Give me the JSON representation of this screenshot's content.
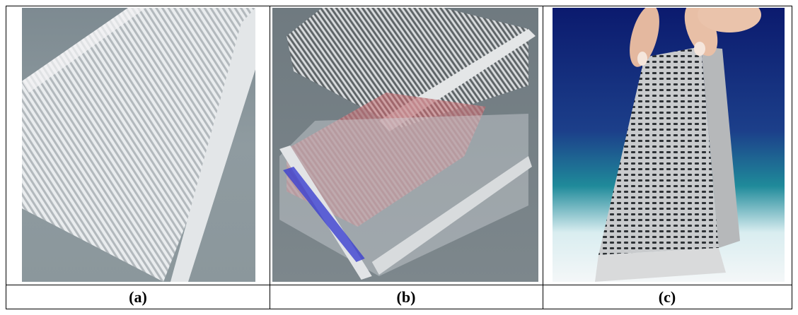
{
  "panels": [
    {
      "label": "(a)",
      "image": "corrugated-fin-plate"
    },
    {
      "label": "(b)",
      "image": "exploded-heat-exchanger-layers"
    },
    {
      "label": "(c)",
      "image": "stacked-heat-exchanger-core-held-by-hand"
    }
  ],
  "colors": {
    "border": "#000000",
    "background": "#ffffff"
  }
}
